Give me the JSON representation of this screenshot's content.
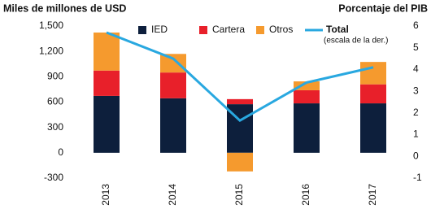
{
  "chart_data": {
    "type": "bar",
    "stacked": true,
    "ylabel": "Miles de millones de USD",
    "y2label": "Porcentaje del PIB",
    "annotation": "(escala de la der.)",
    "categories": [
      "2013",
      "2014",
      "2015",
      "2016",
      "2017"
    ],
    "series": [
      {
        "name": "IED",
        "color": "#0d1f3c",
        "values": [
          673,
          645,
          575,
          585,
          585
        ]
      },
      {
        "name": "Cartera",
        "color": "#e8202a",
        "values": [
          300,
          305,
          60,
          155,
          225
        ]
      },
      {
        "name": "Otros",
        "color": "#f59a2e",
        "values": [
          450,
          220,
          -220,
          105,
          265
        ]
      },
      {
        "name": "Total",
        "color": "#29a8e0",
        "type": "line",
        "axis": "y2",
        "values": [
          5.7,
          4.5,
          1.65,
          3.4,
          4.1
        ]
      }
    ],
    "ylim": [
      -300,
      1500
    ],
    "yticks": [
      -300,
      0,
      300,
      600,
      900,
      {
        "value": 1200,
        "label": "1,200"
      },
      {
        "value": 1500,
        "label": "1,500"
      }
    ],
    "y2lim": [
      -1,
      6
    ],
    "y2ticks": [
      -1,
      0,
      1,
      2,
      3,
      4,
      5,
      6
    ]
  }
}
